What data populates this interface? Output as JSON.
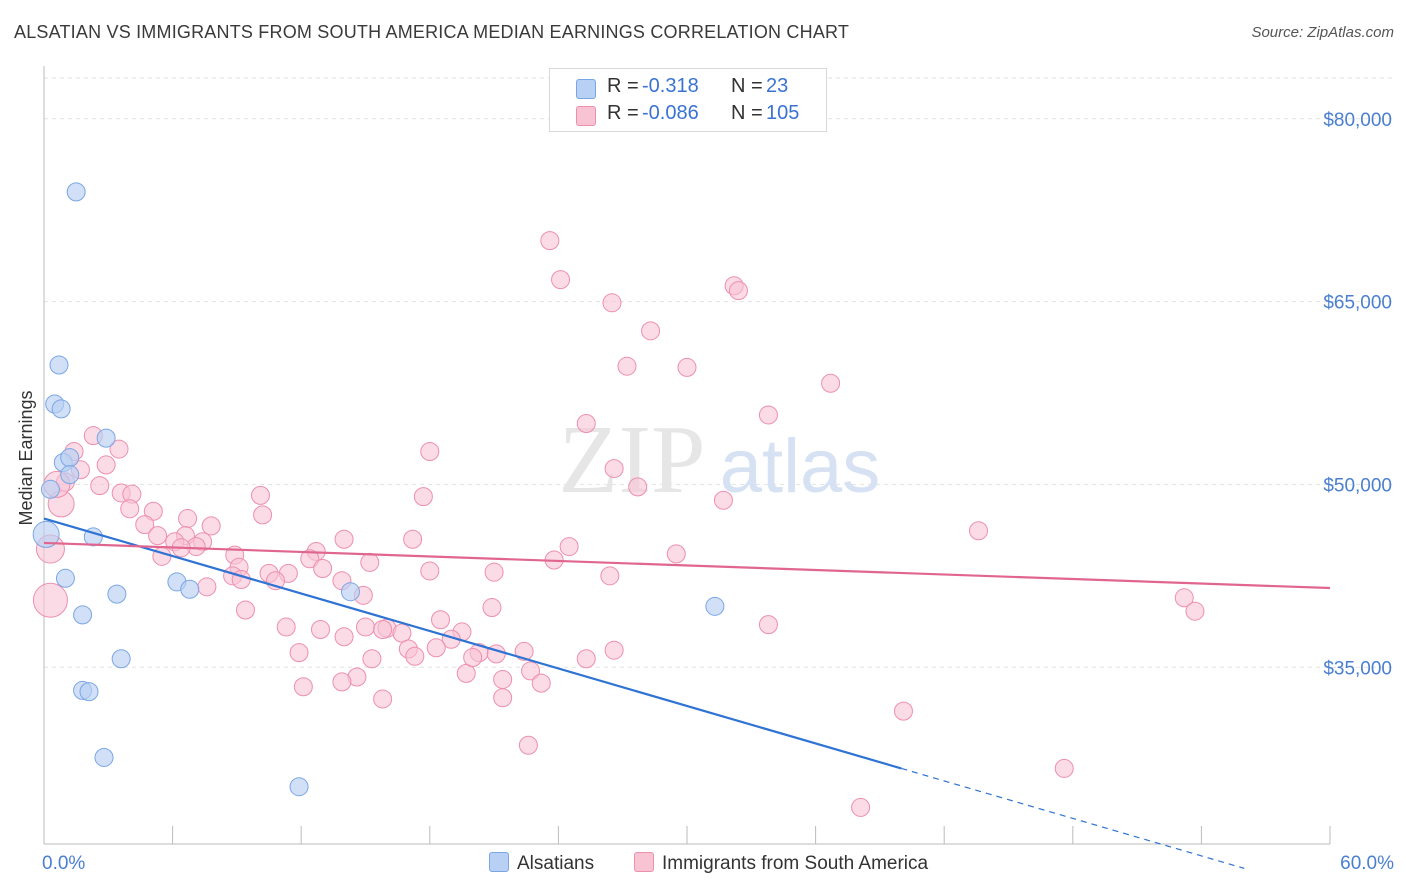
{
  "title": "ALSATIAN VS IMMIGRANTS FROM SOUTH AMERICA MEDIAN EARNINGS CORRELATION CHART",
  "source": "Source: ZipAtlas.com",
  "watermark": {
    "zip": "ZIP",
    "atlas": "atlas"
  },
  "colors": {
    "blue_fill": "#b8d0f3",
    "blue_stroke": "#7aa6e6",
    "blue_line": "#2f73d4",
    "pink_fill": "#f8c3d3",
    "pink_stroke": "#ee8fae",
    "pink_line": "#e06690",
    "tick_label": "#4a7fd0",
    "grid": "#e2e2e2"
  },
  "legend": {
    "rows": [
      {
        "r_label": "R =",
        "r_value": "-0.318",
        "n_label": "N =",
        "n_value": "23",
        "series": "blue"
      },
      {
        "r_label": "R =",
        "r_value": "-0.086",
        "n_label": "N =",
        "n_value": "105",
        "series": "pink"
      }
    ]
  },
  "bottom_legend": [
    "Alsatians",
    "Immigrants from South America"
  ],
  "chart_data": {
    "type": "scatter",
    "title": "ALSATIAN VS IMMIGRANTS FROM SOUTH AMERICA MEDIAN EARNINGS CORRELATION CHART",
    "xlabel": "",
    "ylabel": "Median Earnings",
    "xlim": [
      0,
      60
    ],
    "ylim": [
      20500,
      84000
    ],
    "x_tick_labels": [
      "0.0%",
      "60.0%"
    ],
    "y_ticks": [
      35000,
      50000,
      65000,
      80000
    ],
    "y_tick_labels": [
      "$35,000",
      "$50,000",
      "$65,000",
      "$80,000"
    ],
    "grid": "horizontal dashed",
    "legend_position": "top-center",
    "series": [
      {
        "name": "Alsatians",
        "color": "blue",
        "points": [
          [
            1.5,
            74000
          ],
          [
            0.7,
            59800
          ],
          [
            0.5,
            56600
          ],
          [
            0.8,
            56200
          ],
          [
            2.9,
            53800
          ],
          [
            0.9,
            51800
          ],
          [
            1.2,
            52200
          ],
          [
            1.2,
            50800
          ],
          [
            0.3,
            49600
          ],
          [
            0.1,
            45900
          ],
          [
            2.3,
            45700
          ],
          [
            1.0,
            42300
          ],
          [
            3.4,
            41000
          ],
          [
            1.8,
            39300
          ],
          [
            6.2,
            42000
          ],
          [
            6.8,
            41400
          ],
          [
            14.3,
            41200
          ],
          [
            31.3,
            40000
          ],
          [
            3.6,
            35700
          ],
          [
            1.8,
            33100
          ],
          [
            2.1,
            33000
          ],
          [
            2.8,
            27600
          ],
          [
            11.9,
            25200
          ]
        ],
        "trend": {
          "x0": 0,
          "y0": 47200,
          "x1": 40,
          "y1": 26700,
          "dashed_to_x": 56
        }
      },
      {
        "name": "Immigrants from South America",
        "color": "pink",
        "points": [
          [
            23.6,
            70000
          ],
          [
            24.1,
            66800
          ],
          [
            32.2,
            66300
          ],
          [
            32.4,
            65900
          ],
          [
            26.5,
            64900
          ],
          [
            28.3,
            62600
          ],
          [
            27.2,
            59700
          ],
          [
            30.0,
            59600
          ],
          [
            36.7,
            58300
          ],
          [
            33.8,
            55700
          ],
          [
            25.3,
            55000
          ],
          [
            2.3,
            54000
          ],
          [
            3.5,
            52900
          ],
          [
            1.4,
            52700
          ],
          [
            18.0,
            52700
          ],
          [
            2.9,
            51600
          ],
          [
            1.7,
            51200
          ],
          [
            26.6,
            51300
          ],
          [
            1.0,
            50200
          ],
          [
            2.6,
            49900
          ],
          [
            27.7,
            49800
          ],
          [
            3.6,
            49300
          ],
          [
            4.1,
            49200
          ],
          [
            10.1,
            49100
          ],
          [
            17.7,
            49000
          ],
          [
            31.7,
            48700
          ],
          [
            0.8,
            48400
          ],
          [
            4.0,
            48000
          ],
          [
            5.1,
            47800
          ],
          [
            10.2,
            47500
          ],
          [
            6.7,
            47200
          ],
          [
            7.8,
            46600
          ],
          [
            4.7,
            46700
          ],
          [
            43.6,
            46200
          ],
          [
            5.3,
            45800
          ],
          [
            6.6,
            45800
          ],
          [
            7.4,
            45300
          ],
          [
            14.0,
            45500
          ],
          [
            17.2,
            45500
          ],
          [
            7.1,
            44900
          ],
          [
            6.1,
            45300
          ],
          [
            12.7,
            44500
          ],
          [
            24.5,
            44900
          ],
          [
            0.3,
            44700
          ],
          [
            29.5,
            44300
          ],
          [
            5.5,
            44100
          ],
          [
            8.9,
            44200
          ],
          [
            12.4,
            43900
          ],
          [
            15.2,
            43600
          ],
          [
            23.8,
            43800
          ],
          [
            9.1,
            43200
          ],
          [
            10.5,
            42700
          ],
          [
            11.4,
            42700
          ],
          [
            13.0,
            43100
          ],
          [
            18.0,
            42900
          ],
          [
            21.0,
            42800
          ],
          [
            26.4,
            42500
          ],
          [
            8.8,
            42500
          ],
          [
            10.8,
            42100
          ],
          [
            13.9,
            42100
          ],
          [
            7.6,
            41600
          ],
          [
            14.9,
            40900
          ],
          [
            53.2,
            40700
          ],
          [
            9.4,
            39700
          ],
          [
            20.9,
            39900
          ],
          [
            53.7,
            39600
          ],
          [
            18.5,
            38900
          ],
          [
            33.8,
            38500
          ],
          [
            11.3,
            38300
          ],
          [
            16.0,
            38200
          ],
          [
            12.9,
            38100
          ],
          [
            15.0,
            38300
          ],
          [
            16.7,
            37800
          ],
          [
            19.5,
            37900
          ],
          [
            14.0,
            37500
          ],
          [
            19.0,
            37300
          ],
          [
            17.0,
            36500
          ],
          [
            18.3,
            36600
          ],
          [
            20.3,
            36200
          ],
          [
            22.4,
            36300
          ],
          [
            26.6,
            36400
          ],
          [
            21.1,
            36100
          ],
          [
            17.3,
            35900
          ],
          [
            15.3,
            35700
          ],
          [
            25.3,
            35700
          ],
          [
            19.7,
            34500
          ],
          [
            22.7,
            34700
          ],
          [
            14.6,
            34200
          ],
          [
            13.9,
            33800
          ],
          [
            21.4,
            34000
          ],
          [
            23.2,
            33700
          ],
          [
            12.1,
            33400
          ],
          [
            21.4,
            32500
          ],
          [
            15.8,
            32400
          ],
          [
            40.1,
            31400
          ],
          [
            22.6,
            28600
          ],
          [
            47.6,
            26700
          ],
          [
            38.1,
            23500
          ],
          [
            0.6,
            50000
          ],
          [
            0.3,
            40500
          ],
          [
            6.4,
            44800
          ],
          [
            9.2,
            42200
          ],
          [
            15.8,
            38100
          ],
          [
            11.9,
            36200
          ],
          [
            20.0,
            35800
          ]
        ],
        "trend": {
          "x0": 0,
          "y0": 45200,
          "x1": 60,
          "y1": 41500
        }
      }
    ]
  }
}
